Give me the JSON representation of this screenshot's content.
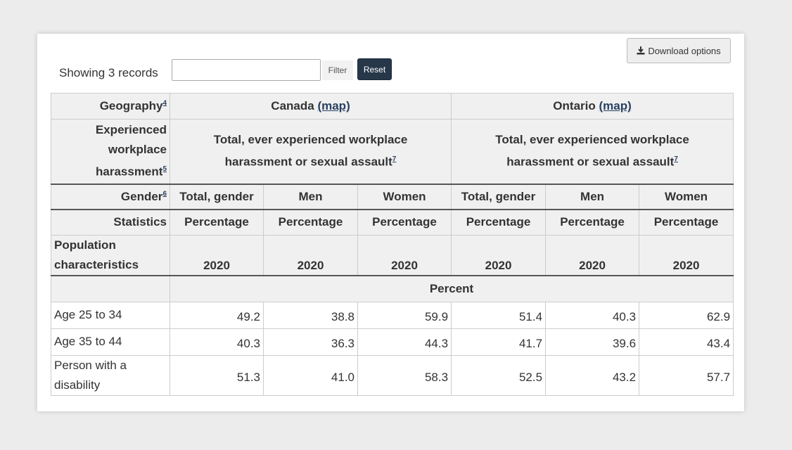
{
  "toolbar": {
    "download_label": "Download options",
    "showing_text": "Showing 3 records",
    "filter_placeholder": "",
    "filter_value": "",
    "filter_label": "Filter",
    "reset_label": "Reset"
  },
  "table": {
    "geography_label": "Geography",
    "geography_note": "4",
    "geographies": [
      {
        "name": "Canada",
        "map_label": "(map)"
      },
      {
        "name": "Ontario",
        "map_label": "(map)"
      }
    ],
    "harassment_label": "Experienced workplace harassment",
    "harassment_note": "5",
    "harassment_value": "Total, ever experienced workplace harassment or sexual assault",
    "harassment_value_note": "7",
    "gender_label": "Gender",
    "gender_note": "6",
    "genders": [
      "Total, gender",
      "Men",
      "Women"
    ],
    "statistics_label": "Statistics",
    "statistics_value": "Percentage",
    "population_label": "Population characteristics",
    "year": "2020",
    "unit_label": "Percent",
    "rows": [
      {
        "label": "Age 25 to 34",
        "values": [
          "49.2",
          "38.8",
          "59.9",
          "51.4",
          "40.3",
          "62.9"
        ]
      },
      {
        "label": "Age 35 to 44",
        "values": [
          "40.3",
          "36.3",
          "44.3",
          "41.7",
          "39.6",
          "43.4"
        ]
      },
      {
        "label": "Person with a disability",
        "values": [
          "51.3",
          "41.0",
          "58.3",
          "52.5",
          "43.2",
          "57.7"
        ]
      }
    ]
  }
}
